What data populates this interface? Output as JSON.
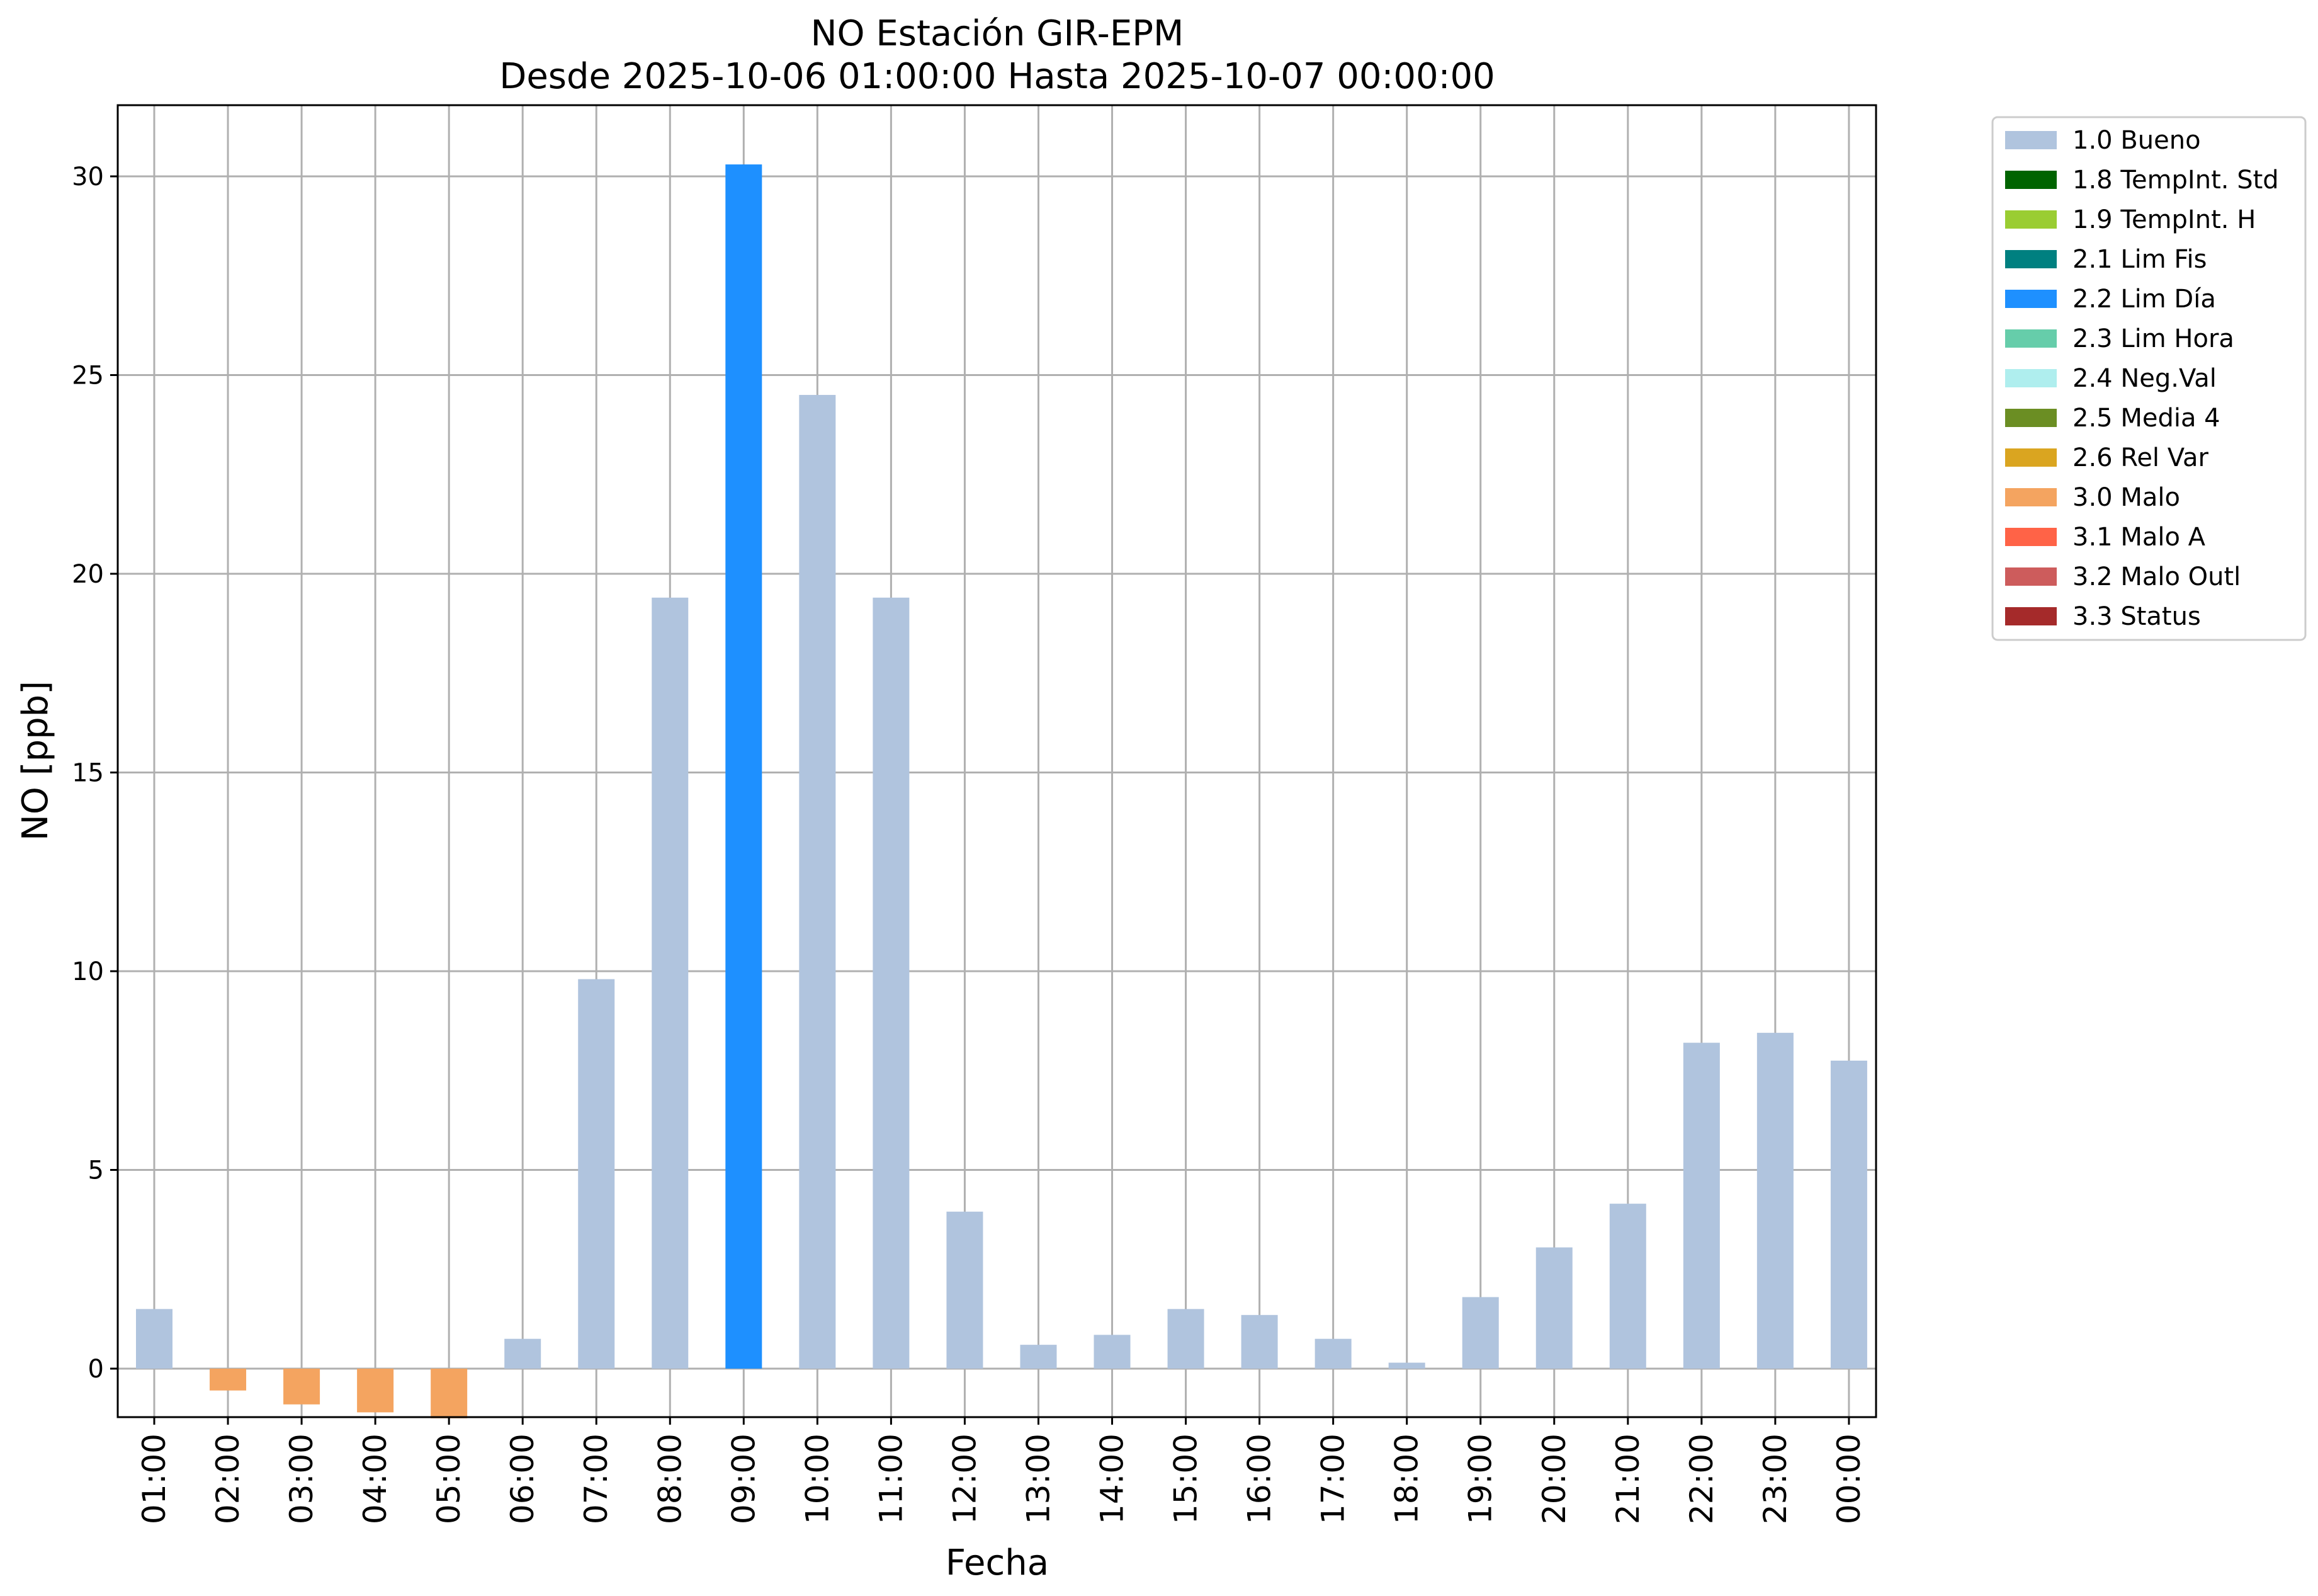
{
  "chart_data": {
    "type": "bar",
    "title": "NO Estación GIR-EPM",
    "subtitle": "Desde 2025-10-06 01:00:00 Hasta 2025-10-07 00:00:00",
    "xlabel": "Fecha",
    "ylabel": "NO [ppb]",
    "ylim": [
      -1.25,
      31.8
    ],
    "yticks": [
      0,
      5,
      10,
      15,
      20,
      25,
      30
    ],
    "grid": true,
    "legend_position": "outside-top-right",
    "categories": [
      "01:00",
      "02:00",
      "03:00",
      "04:00",
      "05:00",
      "06:00",
      "07:00",
      "08:00",
      "09:00",
      "10:00",
      "11:00",
      "12:00",
      "13:00",
      "14:00",
      "15:00",
      "16:00",
      "17:00",
      "18:00",
      "19:00",
      "20:00",
      "21:00",
      "22:00",
      "23:00",
      "00:00"
    ],
    "values": [
      1.5,
      -0.55,
      -0.9,
      -1.1,
      -1.25,
      0.75,
      9.8,
      19.4,
      30.3,
      24.5,
      19.4,
      3.95,
      0.6,
      0.85,
      1.5,
      1.35,
      0.75,
      0.15,
      1.8,
      3.05,
      4.15,
      8.2,
      8.45,
      7.75
    ],
    "flags": [
      "1.0 Bueno",
      "3.0 Malo",
      "3.0 Malo",
      "3.0 Malo",
      "3.0 Malo",
      "1.0 Bueno",
      "1.0 Bueno",
      "1.0 Bueno",
      "2.2 Lim Día",
      "1.0 Bueno",
      "1.0 Bueno",
      "1.0 Bueno",
      "1.0 Bueno",
      "1.0 Bueno",
      "1.0 Bueno",
      "1.0 Bueno",
      "1.0 Bueno",
      "1.0 Bueno",
      "1.0 Bueno",
      "1.0 Bueno",
      "1.0 Bueno",
      "1.0 Bueno",
      "1.0 Bueno",
      "1.0 Bueno"
    ],
    "legend": [
      {
        "label": "1.0 Bueno",
        "color": "#b0c4de"
      },
      {
        "label": "1.8 TempInt. Std",
        "color": "#006400"
      },
      {
        "label": "1.9 TempInt. H",
        "color": "#9acd32"
      },
      {
        "label": "2.1 Lim Fis",
        "color": "#008080"
      },
      {
        "label": "2.2 Lim Día",
        "color": "#1e90ff"
      },
      {
        "label": "2.3 Lim Hora",
        "color": "#66cdaa"
      },
      {
        "label": "2.4 Neg.Val",
        "color": "#afeeee"
      },
      {
        "label": "2.5 Media 4",
        "color": "#6b8e23"
      },
      {
        "label": "2.6 Rel Var",
        "color": "#daa520"
      },
      {
        "label": "3.0 Malo",
        "color": "#f4a460"
      },
      {
        "label": "3.1 Malo A",
        "color": "#ff6347"
      },
      {
        "label": "3.2 Malo Outl",
        "color": "#cd5c5c"
      },
      {
        "label": "3.3 Status",
        "color": "#a52a2a"
      }
    ]
  }
}
